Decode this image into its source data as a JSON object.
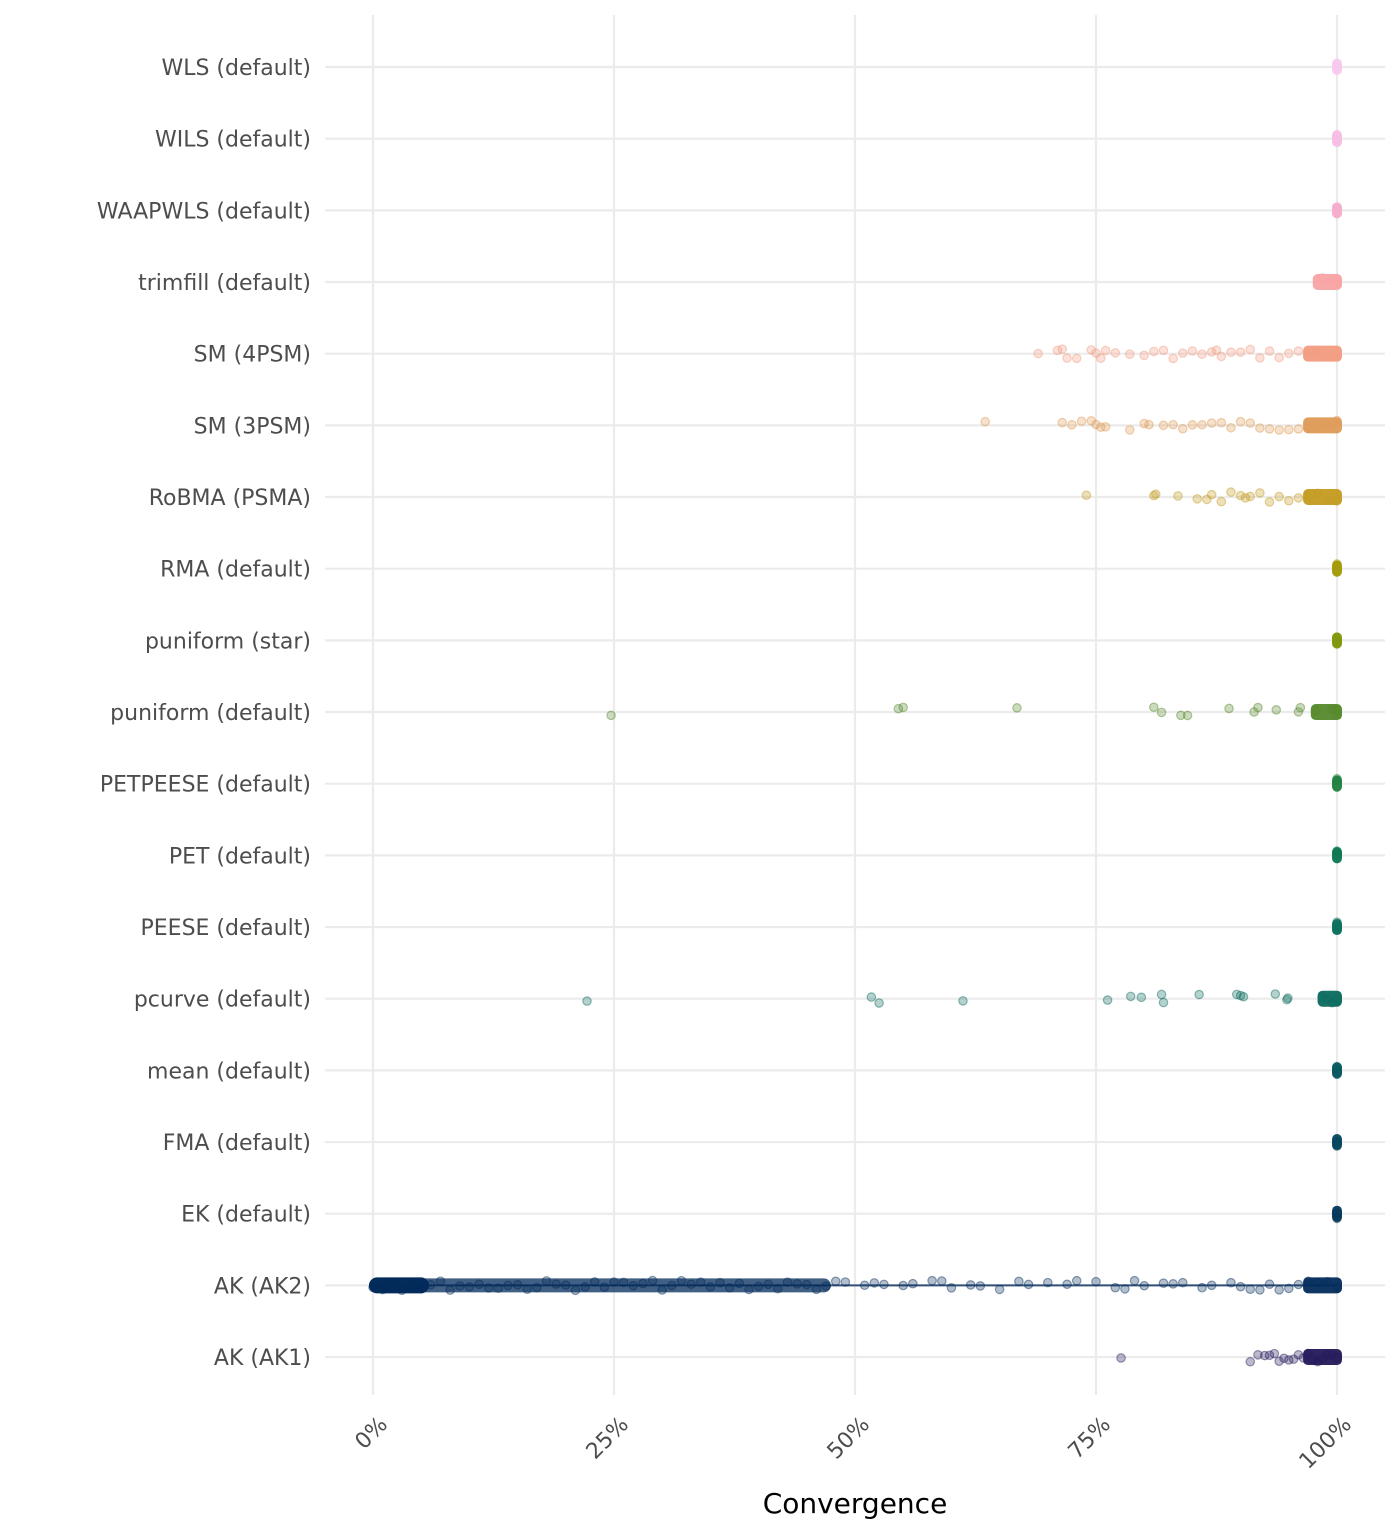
{
  "chart_data": {
    "type": "scatter",
    "subtype": "jitter-strip",
    "title": "",
    "xlabel": "Convergence",
    "ylabel": "",
    "xlim": [
      0,
      1
    ],
    "x_ticks": [
      {
        "value": 0,
        "label": "0%"
      },
      {
        "value": 0.25,
        "label": "25%"
      },
      {
        "value": 0.5,
        "label": "50%"
      },
      {
        "value": 0.75,
        "label": "75%"
      },
      {
        "value": 1,
        "label": "100%"
      }
    ],
    "grid": true,
    "legend": "none",
    "categories_top_to_bottom": [
      "WLS (default)",
      "WILS (default)",
      "WAAPWLS (default)",
      "trimfill (default)",
      "SM (4PSM)",
      "SM (3PSM)",
      "RoBMA (PSMA)",
      "RMA (default)",
      "puniform (star)",
      "puniform (default)",
      "PETPEESE (default)",
      "PET (default)",
      "PEESE (default)",
      "pcurve (default)",
      "mean (default)",
      "FMA (default)",
      "EK (default)",
      "AK (AK2)",
      "AK (AK1)"
    ],
    "series": [
      {
        "name": "WLS (default)",
        "color": "#f8c8ee",
        "values": [
          1.0,
          1.0,
          1.0,
          1.0
        ]
      },
      {
        "name": "WILS (default)",
        "color": "#f7bde5",
        "values": [
          1.0,
          1.0,
          1.0,
          1.0
        ]
      },
      {
        "name": "WAAPWLS (default)",
        "color": "#f4aecb",
        "values": [
          1.0,
          1.0,
          1.0,
          1.0
        ]
      },
      {
        "name": "trimfill (default)",
        "color": "#f9a3a4",
        "values": [
          0.98,
          0.985,
          0.99,
          0.995,
          1.0,
          1.0,
          1.0
        ]
      },
      {
        "name": "SM (4PSM)",
        "color": "#f29b80",
        "values": [
          0.69,
          0.71,
          0.715,
          0.72,
          0.73,
          0.745,
          0.75,
          0.755,
          0.76,
          0.77,
          0.785,
          0.8,
          0.81,
          0.82,
          0.83,
          0.84,
          0.85,
          0.86,
          0.87,
          0.875,
          0.88,
          0.89,
          0.9,
          0.91,
          0.92,
          0.93,
          0.94,
          0.95,
          0.96,
          0.97,
          0.98,
          0.99,
          1.0
        ]
      },
      {
        "name": "SM (3PSM)",
        "color": "#de9a55",
        "values": [
          0.635,
          0.715,
          0.725,
          0.735,
          0.745,
          0.75,
          0.755,
          0.76,
          0.785,
          0.8,
          0.805,
          0.82,
          0.83,
          0.84,
          0.85,
          0.86,
          0.87,
          0.88,
          0.89,
          0.9,
          0.91,
          0.92,
          0.93,
          0.94,
          0.95,
          0.96,
          0.97,
          0.98,
          0.99,
          1.0
        ]
      },
      {
        "name": "RoBMA (PSMA)",
        "color": "#c39b20",
        "values": [
          0.74,
          0.81,
          0.812,
          0.835,
          0.855,
          0.865,
          0.87,
          0.88,
          0.89,
          0.9,
          0.905,
          0.91,
          0.92,
          0.93,
          0.94,
          0.95,
          0.96,
          0.97,
          0.98,
          0.99,
          1.0
        ]
      },
      {
        "name": "RMA (default)",
        "color": "#a39a06",
        "values": [
          1.0,
          1.0,
          1.0,
          1.0
        ]
      },
      {
        "name": "puniform (star)",
        "color": "#7e9708",
        "values": [
          1.0,
          1.0,
          1.0,
          1.0
        ]
      },
      {
        "name": "puniform (default)",
        "color": "#55882a",
        "values": [
          0.247,
          0.545,
          0.55,
          0.668,
          0.81,
          0.818,
          0.838,
          0.845,
          0.888,
          0.914,
          0.918,
          0.937,
          0.96,
          0.962,
          0.978,
          0.995,
          1.0,
          1.0
        ]
      },
      {
        "name": "PETPEESE (default)",
        "color": "#21813f",
        "values": [
          1.0,
          1.0,
          1.0,
          1.0
        ]
      },
      {
        "name": "PET (default)",
        "color": "#0c7750",
        "values": [
          1.0,
          1.0,
          1.0,
          1.0
        ]
      },
      {
        "name": "PEESE (default)",
        "color": "#0a6f5c",
        "values": [
          1.0,
          1.0,
          1.0,
          1.0
        ]
      },
      {
        "name": "pcurve (default)",
        "color": "#0b6a5e",
        "values": [
          0.222,
          0.517,
          0.525,
          0.612,
          0.762,
          0.786,
          0.797,
          0.818,
          0.82,
          0.857,
          0.896,
          0.9,
          0.903,
          0.936,
          0.948,
          0.949,
          0.985,
          0.99,
          0.995,
          1.0
        ]
      },
      {
        "name": "mean (default)",
        "color": "#07575f",
        "values": [
          1.0,
          1.0,
          1.0,
          1.0
        ]
      },
      {
        "name": "FMA (default)",
        "color": "#05475e",
        "values": [
          1.0,
          1.0,
          1.0,
          1.0
        ]
      },
      {
        "name": "EK (default)",
        "color": "#04375a",
        "values": [
          1.0,
          1.0,
          1.0,
          1.0
        ]
      },
      {
        "name": "AK (AK2)",
        "color": "#032b5b",
        "values": [
          0.0,
          0.005,
          0.01,
          0.02,
          0.03,
          0.04,
          0.05,
          0.06,
          0.07,
          0.08,
          0.09,
          0.1,
          0.11,
          0.12,
          0.13,
          0.14,
          0.15,
          0.16,
          0.17,
          0.18,
          0.19,
          0.2,
          0.21,
          0.22,
          0.23,
          0.24,
          0.25,
          0.26,
          0.27,
          0.28,
          0.29,
          0.3,
          0.31,
          0.32,
          0.33,
          0.34,
          0.35,
          0.36,
          0.37,
          0.38,
          0.39,
          0.4,
          0.41,
          0.42,
          0.43,
          0.44,
          0.45,
          0.46,
          0.47,
          0.48,
          0.49,
          0.51,
          0.52,
          0.53,
          0.55,
          0.56,
          0.58,
          0.59,
          0.6,
          0.62,
          0.63,
          0.65,
          0.67,
          0.68,
          0.7,
          0.72,
          0.73,
          0.75,
          0.77,
          0.78,
          0.79,
          0.8,
          0.82,
          0.83,
          0.84,
          0.86,
          0.87,
          0.89,
          0.9,
          0.91,
          0.92,
          0.93,
          0.94,
          0.95,
          0.96,
          0.97,
          0.98,
          0.99,
          1.0
        ]
      },
      {
        "name": "AK (AK1)",
        "color": "#23185a",
        "values": [
          0.776,
          0.91,
          0.918,
          0.925,
          0.93,
          0.935,
          0.94,
          0.945,
          0.95,
          0.955,
          0.96,
          0.965,
          0.97,
          0.975,
          0.98,
          0.985,
          0.99,
          0.995,
          1.0
        ]
      }
    ]
  }
}
